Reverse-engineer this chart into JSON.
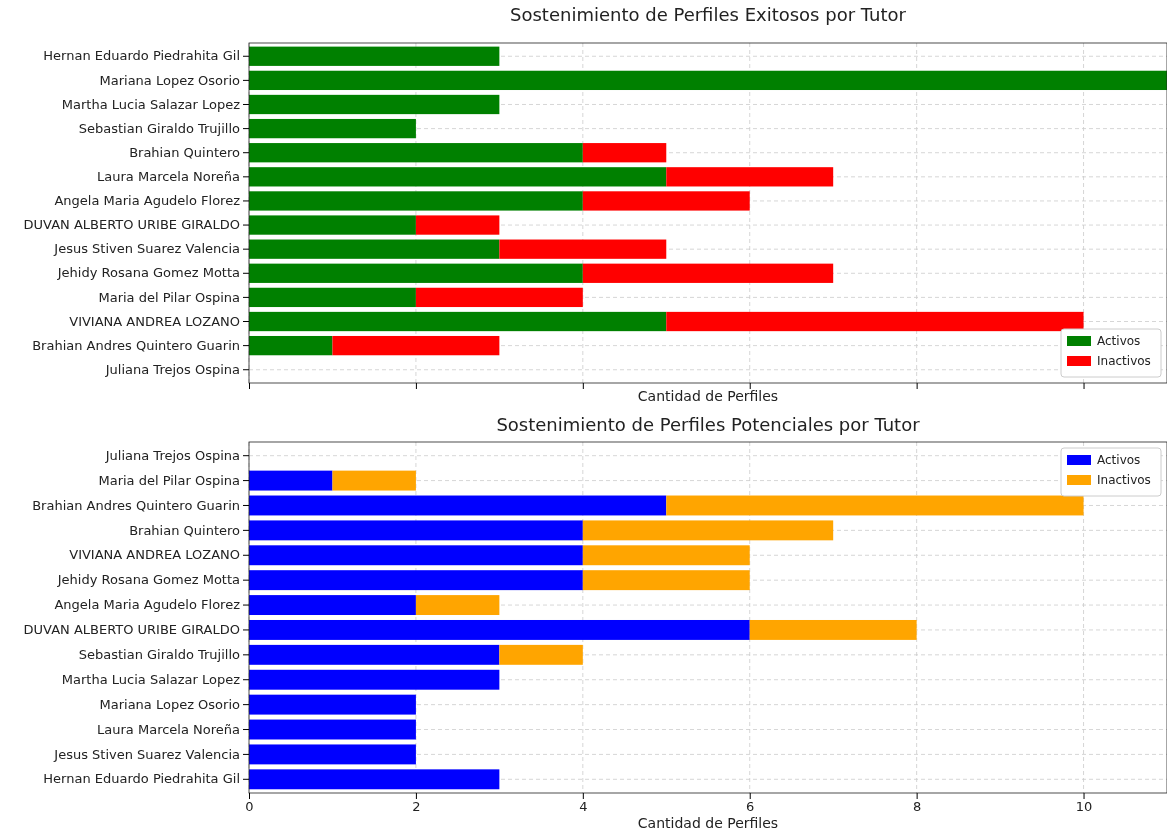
{
  "chart_data": [
    {
      "type": "bar",
      "orientation": "horizontal",
      "stacked": true,
      "title": "Sostenimiento de Perfiles Exitosos por Tutor",
      "xlabel": "Cantidad de Perfiles",
      "categories": [
        "Hernan Eduardo Piedrahita Gil",
        "Mariana Lopez Osorio",
        "Martha Lucia Salazar Lopez",
        "Sebastian Giraldo Trujillo",
        "Brahian Quintero",
        "Laura Marcela Noreña",
        "Angela Maria Agudelo Florez",
        "DUVAN ALBERTO URIBE GIRALDO",
        "Jesus Stiven Suarez Valencia",
        "Jehidy Rosana Gomez Motta",
        "Maria del Pilar Ospina",
        "VIVIANA ANDREA LOZANO",
        "Brahian Andres Quintero Guarin",
        "Juliana Trejos Ospina"
      ],
      "series": [
        {
          "name": "Activos",
          "color": "#008000",
          "values": [
            3,
            11,
            3,
            2,
            4,
            5,
            4,
            2,
            3,
            4,
            2,
            5,
            1,
            0
          ]
        },
        {
          "name": "Inactivos",
          "color": "#ff0000",
          "values": [
            0,
            0,
            0,
            0,
            1,
            2,
            2,
            1,
            2,
            3,
            2,
            5,
            2,
            0
          ]
        }
      ],
      "xlim": [
        0,
        11
      ],
      "xticks": [
        0,
        2,
        4,
        6,
        8,
        10
      ],
      "tick_labels": "y",
      "grid": true,
      "legend": "bottom right"
    },
    {
      "type": "bar",
      "orientation": "horizontal",
      "stacked": true,
      "title": "Sostenimiento de Perfiles Potenciales por Tutor",
      "xlabel": "Cantidad de Perfiles",
      "categories": [
        "Juliana Trejos Ospina",
        "Maria del Pilar Ospina",
        "Brahian Andres Quintero Guarin",
        "Brahian Quintero",
        "VIVIANA ANDREA LOZANO",
        "Jehidy Rosana Gomez Motta",
        "Angela Maria Agudelo Florez",
        "DUVAN ALBERTO URIBE GIRALDO",
        "Sebastian Giraldo Trujillo",
        "Martha Lucia Salazar Lopez",
        "Mariana Lopez Osorio",
        "Laura Marcela Noreña",
        "Jesus Stiven Suarez Valencia",
        "Hernan Eduardo Piedrahita Gil"
      ],
      "series": [
        {
          "name": "Activos",
          "color": "#0000ff",
          "values": [
            0,
            1,
            5,
            4,
            4,
            4,
            2,
            6,
            3,
            3,
            2,
            2,
            2,
            3
          ]
        },
        {
          "name": "Inactivos",
          "color": "#ffa500",
          "values": [
            0,
            1,
            5,
            3,
            2,
            2,
            1,
            2,
            1,
            0,
            0,
            0,
            0,
            0
          ]
        }
      ],
      "xlim": [
        0,
        11
      ],
      "xticks": [
        0,
        2,
        4,
        6,
        8,
        10
      ],
      "grid": true,
      "legend": "top right"
    }
  ]
}
